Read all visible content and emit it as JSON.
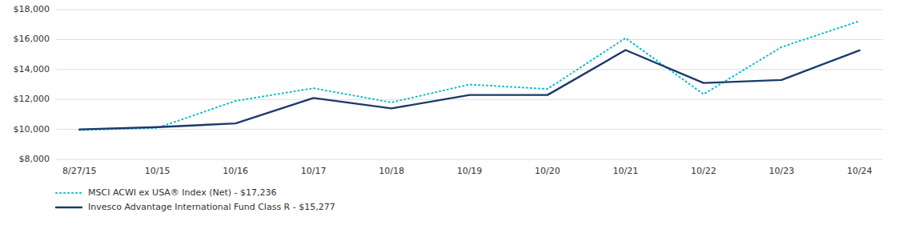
{
  "chart_data": {
    "type": "line",
    "categories": [
      "8/27/15",
      "10/15",
      "10/16",
      "10/17",
      "10/18",
      "10/19",
      "10/20",
      "10/21",
      "10/22",
      "10/23",
      "10/24"
    ],
    "series": [
      {
        "name": "MSCI ACWI ex USA® Index (Net) - $17,236",
        "color": "#00bcd4",
        "line_style": "dotted",
        "values": [
          9950,
          10100,
          11900,
          12750,
          11800,
          13000,
          12700,
          16100,
          12350,
          15500,
          17236
        ]
      },
      {
        "name": "Invesco Advantage International Fund Class R - $15,277",
        "color": "#1a3a6b",
        "line_style": "solid",
        "values": [
          10000,
          10150,
          10400,
          12100,
          11400,
          12300,
          12300,
          15300,
          13100,
          13300,
          15277
        ]
      }
    ],
    "ylim": [
      8000,
      18000
    ],
    "yticks": [
      {
        "value": 8000,
        "label": "$8,000"
      },
      {
        "value": 10000,
        "label": "$10,000"
      },
      {
        "value": 12000,
        "label": "$12,000"
      },
      {
        "value": 14000,
        "label": "$14,000"
      },
      {
        "value": 16000,
        "label": "$16,000"
      },
      {
        "value": 18000,
        "label": "$18,000"
      }
    ],
    "grid": true,
    "legend": "bottom"
  }
}
